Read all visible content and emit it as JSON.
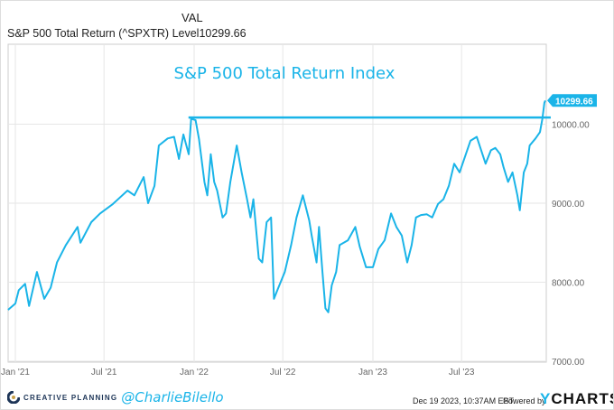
{
  "header": {
    "column_label": "VAL",
    "series_label": "S&P 500 Total Return (^SPXTR) Level",
    "series_value": "10299.66"
  },
  "footer": {
    "brand": "CREATIVE PLANNING",
    "handle": "@CharlieBilello",
    "timestamp": "Dec 19 2023, 10:37AM EST.",
    "powered_by": "Powered by",
    "provider_y": "Y",
    "provider_rest": "CHARTS"
  },
  "colors": {
    "line": "#1ab4e8",
    "grid": "#e6e6e6",
    "brand_blue": "#1ab4e8"
  },
  "chart_data": {
    "type": "line",
    "title": "S&P 500 Total Return Index",
    "xlabel": "",
    "ylabel": "",
    "ylim": [
      7000,
      11000
    ],
    "y_ticks": [
      "7000.00",
      "8000.00",
      "9000.00",
      "10000.00"
    ],
    "x_ticks": [
      {
        "date": "2021-01-01",
        "label": "Jan '21"
      },
      {
        "date": "2021-07-01",
        "label": "Jul '21"
      },
      {
        "date": "2022-01-01",
        "label": "Jan '22"
      },
      {
        "date": "2022-07-01",
        "label": "Jul '22"
      },
      {
        "date": "2023-01-01",
        "label": "Jan '23"
      },
      {
        "date": "2023-07-01",
        "label": "Jul '23"
      }
    ],
    "grid": true,
    "last_value_label": "10299.66",
    "reference_line": {
      "value": 10085,
      "from": "2021-12-26",
      "to": "2023-12-19"
    },
    "series": [
      {
        "x": [
          "2020-12-17",
          "2021-01-01",
          "2021-01-08",
          "2021-01-21",
          "2021-01-29",
          "2021-02-14",
          "2021-03-01",
          "2021-03-14",
          "2021-03-27",
          "2021-04-14",
          "2021-05-08",
          "2021-05-14",
          "2021-06-05",
          "2021-06-23",
          "2021-07-19",
          "2021-08-18",
          "2021-09-01",
          "2021-09-20",
          "2021-09-29",
          "2021-10-12",
          "2021-10-21",
          "2021-11-08",
          "2021-11-21",
          "2021-12-01",
          "2021-12-10",
          "2021-12-21",
          "2021-12-26",
          "2022-01-04",
          "2022-01-11",
          "2022-01-22",
          "2022-01-28",
          "2022-02-04",
          "2022-02-11",
          "2022-02-17",
          "2022-02-28",
          "2022-03-07",
          "2022-03-16",
          "2022-03-29",
          "2022-04-08",
          "2022-04-19",
          "2022-04-26",
          "2022-05-02",
          "2022-05-13",
          "2022-05-20",
          "2022-05-29",
          "2022-06-07",
          "2022-06-13",
          "2022-06-20",
          "2022-07-05",
          "2022-07-18",
          "2022-07-29",
          "2022-08-11",
          "2022-08-24",
          "2022-08-29",
          "2022-09-08",
          "2022-09-13",
          "2022-09-20",
          "2022-09-26",
          "2022-10-02",
          "2022-10-09",
          "2022-10-18",
          "2022-10-25",
          "2022-11-11",
          "2022-11-26",
          "2022-12-05",
          "2022-12-18",
          "2023-01-01",
          "2023-01-12",
          "2023-01-25",
          "2023-02-07",
          "2023-02-18",
          "2023-03-01",
          "2023-03-12",
          "2023-03-21",
          "2023-03-30",
          "2023-04-09",
          "2023-04-21",
          "2023-05-02",
          "2023-05-14",
          "2023-05-25",
          "2023-06-05",
          "2023-06-16",
          "2023-06-27",
          "2023-07-08",
          "2023-07-19",
          "2023-08-01",
          "2023-08-10",
          "2023-08-19",
          "2023-08-30",
          "2023-09-08",
          "2023-09-18",
          "2023-09-25",
          "2023-10-04",
          "2023-10-13",
          "2023-10-23",
          "2023-10-28",
          "2023-11-05",
          "2023-11-12",
          "2023-11-17",
          "2023-11-29",
          "2023-12-08",
          "2023-12-13",
          "2023-12-17",
          "2023-12-19"
        ],
        "values": [
          7650,
          7730,
          7900,
          7980,
          7700,
          8130,
          7790,
          7930,
          8250,
          8470,
          8700,
          8500,
          8760,
          8870,
          8990,
          9160,
          9100,
          9330,
          9000,
          9220,
          9730,
          9820,
          9840,
          9560,
          9870,
          9620,
          10070,
          10050,
          9810,
          9270,
          9100,
          9620,
          9270,
          9160,
          8820,
          8870,
          9270,
          9730,
          9390,
          9050,
          8820,
          9050,
          8300,
          8250,
          8760,
          8820,
          7790,
          7900,
          8130,
          8470,
          8820,
          9100,
          8780,
          8590,
          8250,
          8700,
          8130,
          7670,
          7620,
          7960,
          8130,
          8470,
          8530,
          8700,
          8450,
          8190,
          8190,
          8420,
          8530,
          8870,
          8700,
          8590,
          8250,
          8470,
          8820,
          8850,
          8860,
          8820,
          8990,
          9050,
          9220,
          9500,
          9390,
          9590,
          9790,
          9840,
          9670,
          9500,
          9670,
          9700,
          9620,
          9450,
          9270,
          9390,
          9100,
          8910,
          9390,
          9500,
          9730,
          9820,
          9900,
          10070,
          10270,
          10299.66
        ]
      }
    ]
  }
}
